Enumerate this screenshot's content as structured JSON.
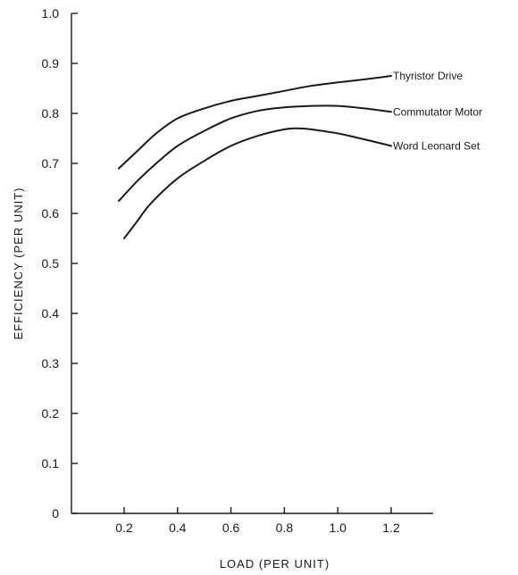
{
  "chart_data": {
    "type": "line",
    "title": "",
    "xlabel": "LOAD (PER UNIT)",
    "ylabel": "EFFICIENCY (PER UNIT)",
    "xlim": [
      0,
      1.3
    ],
    "ylim": [
      0,
      1.0
    ],
    "x_ticks": [
      {
        "value": 0.2,
        "label": "0.2"
      },
      {
        "value": 0.4,
        "label": "0.4"
      },
      {
        "value": 0.6,
        "label": "0.6"
      },
      {
        "value": 0.8,
        "label": "0.8"
      },
      {
        "value": 1.0,
        "label": "1.0"
      },
      {
        "value": 1.2,
        "label": "1.2"
      }
    ],
    "y_ticks": [
      {
        "value": 0.0,
        "label": "0"
      },
      {
        "value": 0.1,
        "label": "0.1"
      },
      {
        "value": 0.2,
        "label": "0.2"
      },
      {
        "value": 0.3,
        "label": "0.3"
      },
      {
        "value": 0.4,
        "label": "0.4"
      },
      {
        "value": 0.5,
        "label": "0.5"
      },
      {
        "value": 0.6,
        "label": "0.6"
      },
      {
        "value": 0.7,
        "label": "0.7"
      },
      {
        "value": 0.8,
        "label": "0.8"
      },
      {
        "value": 0.9,
        "label": "0.9"
      },
      {
        "value": 1.0,
        "label": "1.0"
      }
    ],
    "grid": false,
    "legend": "none",
    "series": [
      {
        "name": "Thyristor Drive",
        "x": [
          0.18,
          0.25,
          0.32,
          0.4,
          0.5,
          0.6,
          0.7,
          0.8,
          0.9,
          1.0,
          1.1,
          1.2
        ],
        "y": [
          0.69,
          0.725,
          0.76,
          0.79,
          0.81,
          0.825,
          0.835,
          0.845,
          0.855,
          0.862,
          0.868,
          0.875
        ]
      },
      {
        "name": "Commutator Motor",
        "x": [
          0.18,
          0.25,
          0.32,
          0.4,
          0.5,
          0.6,
          0.7,
          0.8,
          0.9,
          1.0,
          1.1,
          1.2
        ],
        "y": [
          0.625,
          0.665,
          0.7,
          0.735,
          0.765,
          0.79,
          0.805,
          0.812,
          0.815,
          0.815,
          0.81,
          0.803
        ]
      },
      {
        "name": "Word Leonard Set",
        "x": [
          0.2,
          0.25,
          0.3,
          0.4,
          0.5,
          0.6,
          0.7,
          0.8,
          0.85,
          0.9,
          1.0,
          1.1,
          1.2
        ],
        "y": [
          0.55,
          0.585,
          0.62,
          0.67,
          0.705,
          0.735,
          0.755,
          0.768,
          0.77,
          0.768,
          0.76,
          0.748,
          0.735
        ]
      }
    ]
  }
}
